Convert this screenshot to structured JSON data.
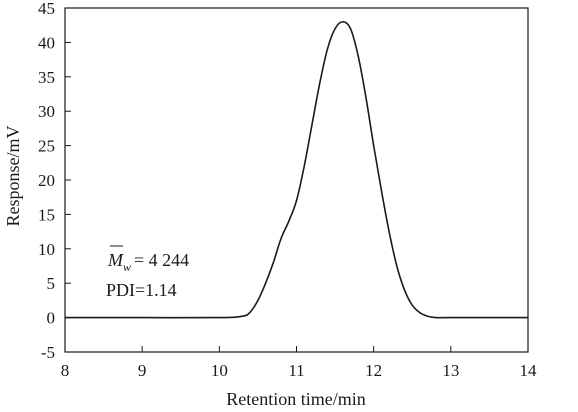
{
  "chart_data": {
    "type": "line",
    "title": "",
    "xlabel": "Retention time/min",
    "ylabel": "Response/mV",
    "xlim": [
      8,
      14
    ],
    "ylim": [
      -5,
      45
    ],
    "x_ticks": [
      8,
      9,
      10,
      11,
      12,
      13,
      14
    ],
    "y_ticks": [
      -5,
      0,
      5,
      10,
      15,
      20,
      25,
      30,
      35,
      40,
      45
    ],
    "grid": false,
    "legend": "none",
    "annotations": [
      {
        "symbol": "M",
        "subscript": "w",
        "equals": "= 4 244"
      },
      {
        "text": "PDI=1.14"
      }
    ],
    "series": [
      {
        "color": "#1a1a1a",
        "points": [
          [
            8.0,
            0.0
          ],
          [
            9.0,
            0.0
          ],
          [
            10.0,
            0.0
          ],
          [
            10.3,
            0.2
          ],
          [
            10.4,
            0.8
          ],
          [
            10.5,
            2.5
          ],
          [
            10.6,
            5.0
          ],
          [
            10.7,
            8.0
          ],
          [
            10.8,
            11.5
          ],
          [
            10.9,
            14.0
          ],
          [
            11.0,
            17.0
          ],
          [
            11.1,
            22.0
          ],
          [
            11.2,
            28.0
          ],
          [
            11.3,
            34.0
          ],
          [
            11.4,
            39.0
          ],
          [
            11.5,
            42.0
          ],
          [
            11.6,
            43.0
          ],
          [
            11.7,
            42.0
          ],
          [
            11.8,
            38.0
          ],
          [
            11.9,
            32.0
          ],
          [
            12.0,
            25.0
          ],
          [
            12.1,
            18.5
          ],
          [
            12.2,
            12.5
          ],
          [
            12.3,
            7.5
          ],
          [
            12.4,
            4.0
          ],
          [
            12.5,
            1.8
          ],
          [
            12.6,
            0.7
          ],
          [
            12.7,
            0.2
          ],
          [
            12.8,
            0.0
          ],
          [
            13.0,
            0.0
          ],
          [
            14.0,
            0.0
          ]
        ]
      }
    ]
  }
}
